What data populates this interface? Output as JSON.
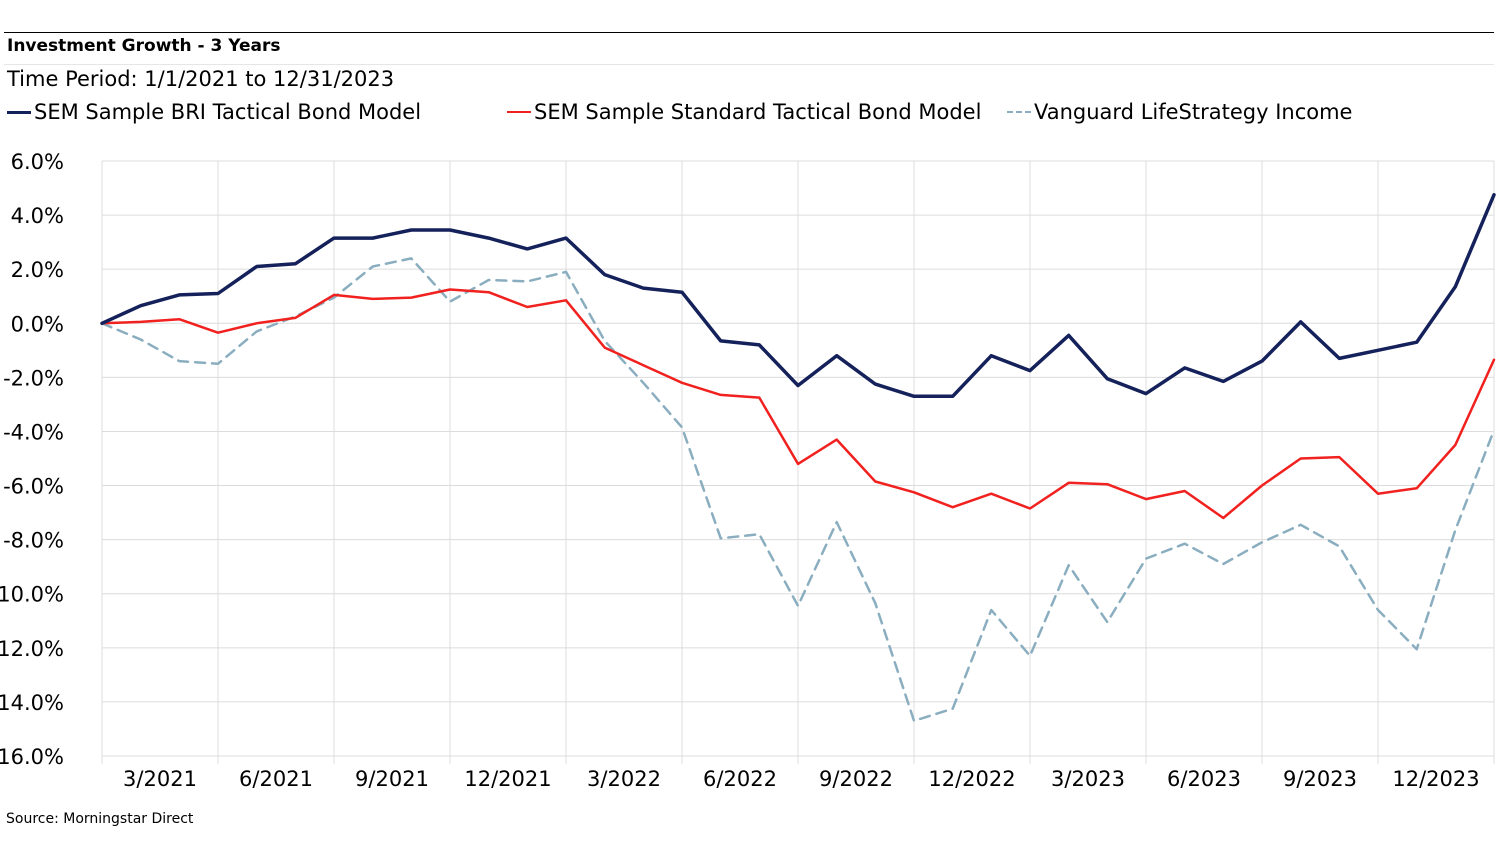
{
  "header": {
    "title": "Investment Growth - 3 Years",
    "period": "Time Period: 1/1/2021 to 12/31/2023"
  },
  "footer": {
    "source": "Source: Morningstar Direct"
  },
  "chart_data": {
    "type": "line",
    "title": "Investment Growth - 3 Years",
    "subtitle": "Time Period: 1/1/2021 to 12/31/2023",
    "xlabel": "",
    "ylabel": "",
    "ylim": [
      -16,
      6
    ],
    "y_ticks": [
      6,
      4,
      2,
      0,
      -2,
      -4,
      -6,
      -8,
      -10,
      -12,
      -14,
      -16
    ],
    "y_tick_labels": [
      "6.0%",
      "4.0%",
      "2.0%",
      "0.0%",
      "-2.0%",
      "-4.0%",
      "-6.0%",
      "-8.0%",
      "-10.0%",
      "-12.0%",
      "-14.0%",
      "-16.0%"
    ],
    "x_tick_labels": [
      "3/2021",
      "6/2021",
      "9/2021",
      "12/2021",
      "3/2022",
      "6/2022",
      "9/2022",
      "12/2022",
      "3/2023",
      "6/2023",
      "9/2023",
      "12/2023"
    ],
    "x": [
      "12/2020",
      "1/2021",
      "2/2021",
      "3/2021",
      "4/2021",
      "5/2021",
      "6/2021",
      "7/2021",
      "8/2021",
      "9/2021",
      "10/2021",
      "11/2021",
      "12/2021",
      "1/2022",
      "2/2022",
      "3/2022",
      "4/2022",
      "5/2022",
      "6/2022",
      "7/2022",
      "8/2022",
      "9/2022",
      "10/2022",
      "11/2022",
      "12/2022",
      "1/2023",
      "2/2023",
      "3/2023",
      "4/2023",
      "5/2023",
      "6/2023",
      "7/2023",
      "8/2023",
      "9/2023",
      "10/2023",
      "11/2023",
      "12/2023"
    ],
    "grid": true,
    "legend_position": "top",
    "series": [
      {
        "name": "SEM Sample BRI Tactical Bond Model",
        "color": "#14215a",
        "style": "solid",
        "values": [
          0.0,
          0.65,
          1.05,
          1.1,
          2.1,
          2.2,
          3.15,
          3.15,
          3.45,
          3.45,
          3.15,
          2.75,
          3.15,
          1.8,
          1.3,
          1.15,
          -0.65,
          -0.8,
          -2.3,
          -1.2,
          -2.25,
          -2.7,
          -2.7,
          -1.2,
          -1.75,
          -0.45,
          -2.05,
          -2.6,
          -1.65,
          -2.15,
          -1.4,
          0.05,
          -1.3,
          -1.0,
          -0.7,
          1.35,
          4.75
        ]
      },
      {
        "name": "SEM Sample Standard Tactical Bond Model",
        "color": "#f0211e",
        "style": "solid",
        "values": [
          0.0,
          0.05,
          0.15,
          -0.35,
          0.0,
          0.2,
          1.05,
          0.9,
          0.95,
          1.25,
          1.15,
          0.6,
          0.85,
          -0.9,
          -1.55,
          -2.2,
          -2.65,
          -2.75,
          -5.2,
          -4.3,
          -5.85,
          -6.25,
          -6.8,
          -6.3,
          -6.85,
          -5.9,
          -5.95,
          -6.5,
          -6.2,
          -7.2,
          -6.0,
          -5.0,
          -4.95,
          -6.3,
          -6.1,
          -4.5,
          -1.35
        ]
      },
      {
        "name": "Vanguard LifeStrategy Income",
        "color": "#8aaebf",
        "style": "dashed",
        "values": [
          0.0,
          -0.6,
          -1.4,
          -1.5,
          -0.3,
          0.25,
          0.95,
          2.1,
          2.4,
          0.8,
          1.6,
          1.55,
          1.9,
          -0.65,
          -2.2,
          -3.85,
          -7.95,
          -7.8,
          -10.45,
          -7.35,
          -10.35,
          -14.7,
          -14.25,
          -10.6,
          -12.3,
          -8.95,
          -11.05,
          -8.7,
          -8.15,
          -8.9,
          -8.1,
          -7.45,
          -8.25,
          -10.6,
          -12.05,
          -7.65,
          -3.95
        ]
      }
    ]
  }
}
